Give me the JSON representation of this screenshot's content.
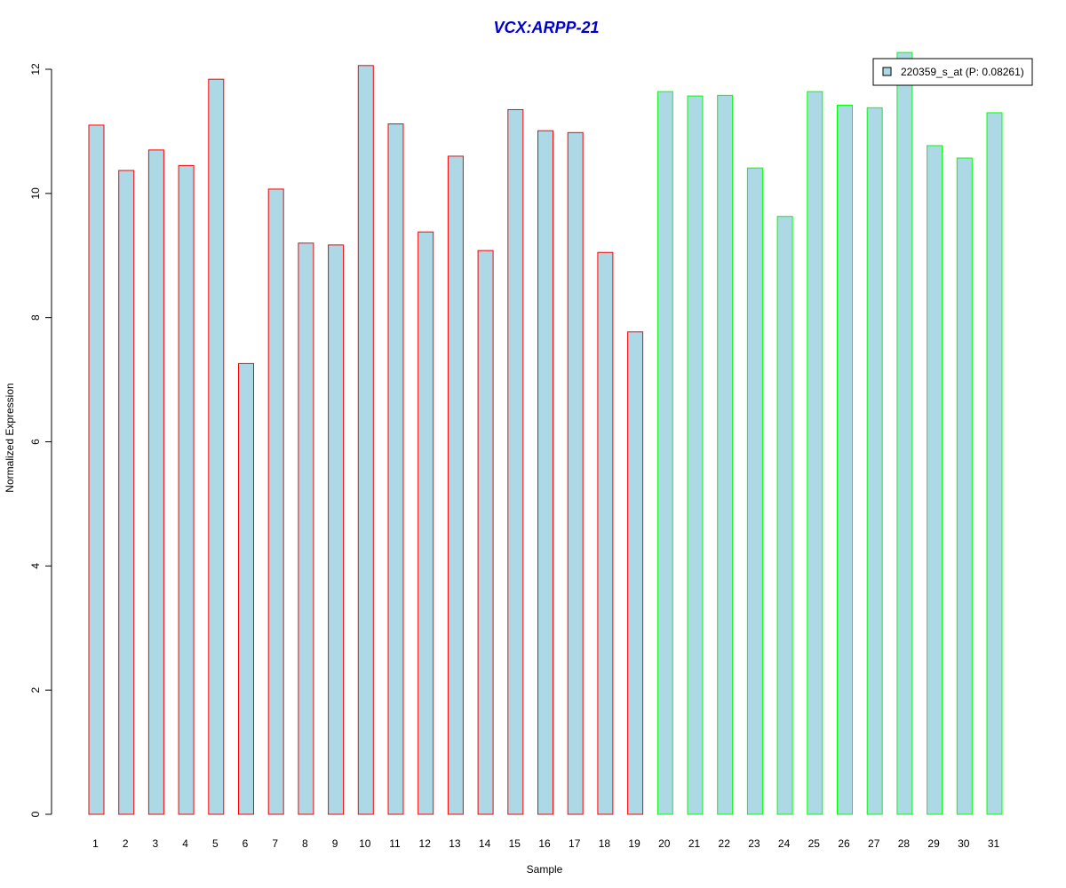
{
  "chart_data": {
    "type": "bar",
    "title": "VCX:ARPP-21",
    "xlabel": "Sample",
    "ylabel": "Normalized Expression",
    "ylim": [
      0,
      12
    ],
    "yticks": [
      "0",
      "2",
      "4",
      "6",
      "8",
      "10",
      "12"
    ],
    "grid": false,
    "legend_position": "top-right",
    "categories": [
      "1",
      "2",
      "3",
      "4",
      "5",
      "6",
      "7",
      "8",
      "9",
      "10",
      "11",
      "12",
      "13",
      "14",
      "15",
      "16",
      "17",
      "18",
      "19",
      "20",
      "21",
      "22",
      "23",
      "24",
      "25",
      "26",
      "27",
      "28",
      "29",
      "30",
      "31"
    ],
    "series": [
      {
        "name": "220359_s_at (P: 0.08261)",
        "values": [
          11.1,
          10.37,
          10.7,
          10.45,
          11.84,
          7.26,
          10.07,
          9.2,
          9.17,
          12.06,
          11.12,
          9.38,
          10.6,
          9.08,
          11.35,
          11.01,
          10.98,
          9.05,
          7.77,
          11.64,
          11.57,
          11.58,
          10.41,
          9.63,
          11.64,
          11.42,
          11.38,
          12.27,
          10.77,
          10.57,
          11.3
        ]
      }
    ],
    "groups": [
      {
        "samples": [
          1,
          19
        ],
        "border_color": "#ff0000"
      },
      {
        "samples": [
          20,
          31
        ],
        "border_color": "#00ff00"
      }
    ],
    "colors": {
      "bar_fill": "#add8e6",
      "title": "#0000cc",
      "axis": "#000000"
    }
  }
}
